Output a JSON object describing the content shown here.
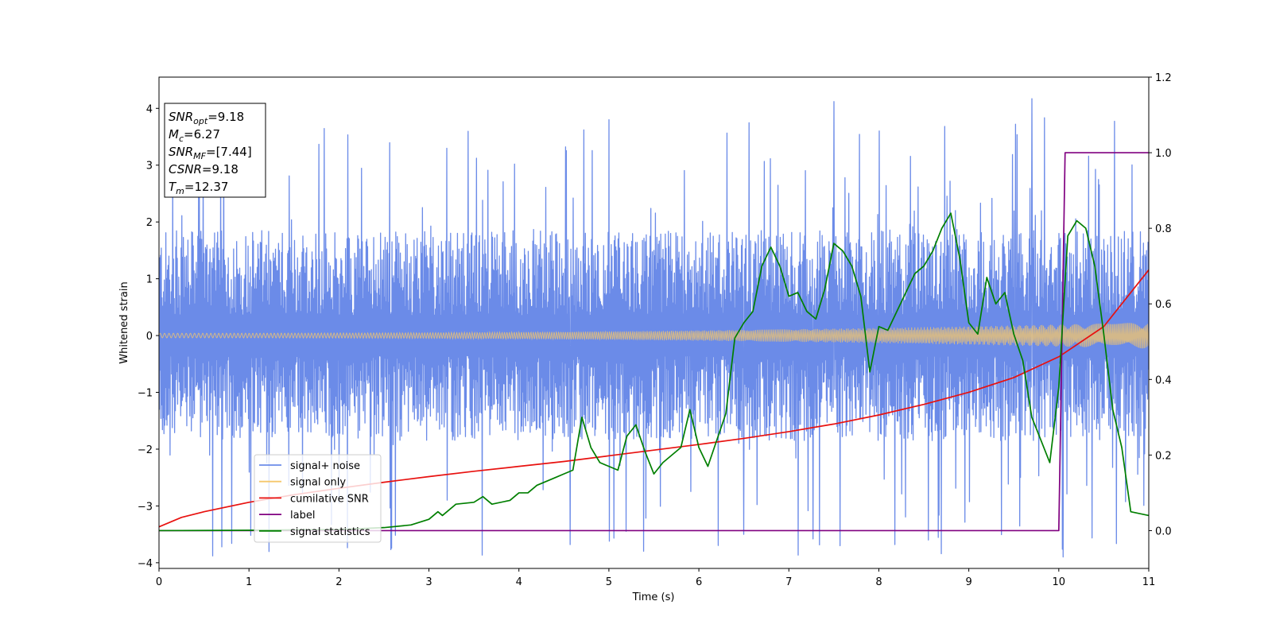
{
  "chart_data": {
    "type": "line",
    "title": "",
    "xlabel": "Time (s)",
    "ylabel": "Whitened strain",
    "y2label": "",
    "xlim": [
      0,
      11
    ],
    "ylim": [
      -4.1,
      4.55
    ],
    "y2lim": [
      -0.1,
      1.2
    ],
    "xticks": [
      "0",
      "1",
      "2",
      "3",
      "4",
      "5",
      "6",
      "7",
      "8",
      "9",
      "10",
      "11"
    ],
    "yticks": [
      "−4",
      "−3",
      "−2",
      "−1",
      "0",
      "1",
      "2",
      "3",
      "4"
    ],
    "y2ticks": [
      "0.0",
      "0.2",
      "0.4",
      "0.6",
      "0.8",
      "1.0",
      "1.2"
    ],
    "grid": false,
    "legend_position": "lower-left",
    "annotation_box": {
      "position": "top-left",
      "lines": [
        {
          "sym": "SNR",
          "sub": "opt",
          "val": "=9.18"
        },
        {
          "sym": "M",
          "sub": "c",
          "val": "=6.27"
        },
        {
          "sym": "SNR",
          "sub": "MF",
          "val": "=[7.44]"
        },
        {
          "sym": "CSNR",
          "sub": "",
          "val": "=9.18"
        },
        {
          "sym": "T",
          "sub": "m",
          "val": "=12.37"
        }
      ]
    },
    "series": [
      {
        "name": "signal+ noise",
        "axis": "left",
        "color": "#6b8be8",
        "style": "noise-band",
        "band_abs": 1.5,
        "spike_abs": 2.4,
        "peaks": [
          [
            4.72,
            3.62
          ],
          [
            5.0,
            3.8
          ],
          [
            7.5,
            4.12
          ],
          [
            9.52,
            3.72
          ],
          [
            9.7,
            4.17
          ]
        ],
        "troughs": [
          [
            4.57,
            -3.68
          ],
          [
            7.27,
            -3.58
          ],
          [
            7.57,
            -3.7
          ],
          [
            8.18,
            -3.68
          ],
          [
            8.55,
            -3.6
          ],
          [
            6.5,
            -3.5
          ]
        ]
      },
      {
        "name": "signal only",
        "axis": "left",
        "color": "#f5c76b",
        "style": "chirp-band",
        "amplitude_start": 0.04,
        "amplitude_end": 0.23
      },
      {
        "name": "cumilative SNR",
        "axis": "right",
        "color": "#e8110f",
        "x": [
          0,
          0.25,
          0.5,
          1,
          1.5,
          2,
          2.5,
          3,
          3.5,
          4,
          4.5,
          5,
          5.5,
          6,
          6.5,
          7,
          7.5,
          8,
          8.5,
          9,
          9.5,
          10,
          10.5,
          11
        ],
        "y": [
          0.01,
          0.035,
          0.05,
          0.075,
          0.095,
          0.112,
          0.128,
          0.143,
          0.157,
          0.17,
          0.183,
          0.198,
          0.213,
          0.228,
          0.244,
          0.262,
          0.282,
          0.306,
          0.334,
          0.366,
          0.405,
          0.46,
          0.54,
          0.69
        ]
      },
      {
        "name": "label",
        "axis": "right",
        "color": "#800080",
        "x": [
          0,
          10.0,
          10.07,
          11
        ],
        "y": [
          0.0,
          0.0,
          1.0,
          1.0
        ]
      },
      {
        "name": "signal statistics",
        "axis": "right",
        "color": "#007f00",
        "x": [
          0,
          1,
          2,
          2.5,
          2.8,
          3.0,
          3.1,
          3.15,
          3.3,
          3.5,
          3.6,
          3.7,
          3.9,
          4.0,
          4.1,
          4.2,
          4.3,
          4.4,
          4.5,
          4.6,
          4.7,
          4.8,
          4.9,
          5.0,
          5.1,
          5.2,
          5.3,
          5.4,
          5.5,
          5.6,
          5.7,
          5.8,
          5.9,
          6.0,
          6.1,
          6.2,
          6.3,
          6.4,
          6.5,
          6.6,
          6.7,
          6.8,
          6.9,
          7.0,
          7.1,
          7.2,
          7.3,
          7.4,
          7.5,
          7.6,
          7.7,
          7.8,
          7.9,
          8.0,
          8.1,
          8.2,
          8.3,
          8.4,
          8.5,
          8.6,
          8.7,
          8.8,
          8.9,
          9.0,
          9.1,
          9.2,
          9.3,
          9.4,
          9.5,
          9.6,
          9.7,
          9.8,
          9.9,
          10.0,
          10.1,
          10.2,
          10.3,
          10.4,
          10.5,
          10.6,
          10.7,
          10.8,
          11.0
        ],
        "y": [
          0.0,
          0.001,
          0.003,
          0.008,
          0.015,
          0.03,
          0.05,
          0.04,
          0.07,
          0.075,
          0.09,
          0.07,
          0.08,
          0.1,
          0.1,
          0.12,
          0.13,
          0.14,
          0.15,
          0.16,
          0.3,
          0.22,
          0.18,
          0.17,
          0.16,
          0.25,
          0.28,
          0.21,
          0.15,
          0.18,
          0.2,
          0.22,
          0.32,
          0.22,
          0.17,
          0.24,
          0.31,
          0.51,
          0.55,
          0.58,
          0.7,
          0.75,
          0.7,
          0.62,
          0.63,
          0.58,
          0.56,
          0.64,
          0.76,
          0.74,
          0.7,
          0.62,
          0.42,
          0.54,
          0.53,
          0.58,
          0.63,
          0.68,
          0.7,
          0.74,
          0.8,
          0.84,
          0.72,
          0.55,
          0.52,
          0.67,
          0.6,
          0.63,
          0.52,
          0.45,
          0.3,
          0.24,
          0.18,
          0.38,
          0.78,
          0.82,
          0.8,
          0.7,
          0.52,
          0.32,
          0.22,
          0.05,
          0.04
        ]
      }
    ]
  }
}
